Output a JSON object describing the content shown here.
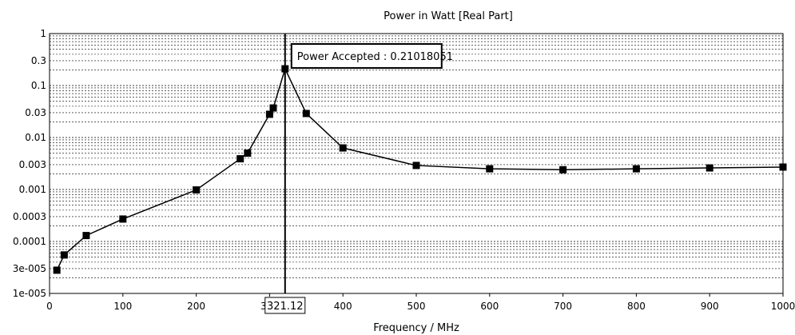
{
  "chart_data": {
    "type": "line",
    "title": "Power in Watt [Real Part]",
    "xlabel": "Frequency / MHz",
    "ylabel": "",
    "xlim": [
      0,
      1000
    ],
    "ylim": [
      1e-05,
      1
    ],
    "yscale": "log",
    "grid": true,
    "x_ticks": [
      0,
      100,
      200,
      300,
      400,
      500,
      600,
      700,
      800,
      900,
      1000
    ],
    "x_tick_labels": [
      "0",
      "100",
      "200",
      "300",
      "400",
      "500",
      "600",
      "700",
      "800",
      "900",
      "1000"
    ],
    "y_ticks": [
      1,
      0.3,
      0.1,
      0.03,
      0.01,
      0.003,
      0.001,
      0.0003,
      0.0001,
      3e-05,
      1e-05
    ],
    "y_tick_labels": [
      "1",
      "0.3",
      "0.1",
      "0.03",
      "0.01",
      "0.003",
      "0.001",
      "0.0003",
      "0.0001",
      "3e-005",
      "1e-005"
    ],
    "series": [
      {
        "color": "#000000",
        "marker": "square",
        "points": [
          [
            10,
            2.8e-05
          ],
          [
            20,
            5.5e-05
          ],
          [
            50,
            0.00013
          ],
          [
            100,
            0.00027
          ],
          [
            200,
            0.00098
          ],
          [
            260,
            0.0039
          ],
          [
            270,
            0.005
          ],
          [
            300,
            0.028
          ],
          [
            305,
            0.037
          ],
          [
            321.12,
            0.21018051
          ],
          [
            350,
            0.029
          ],
          [
            400,
            0.0063
          ],
          [
            500,
            0.0029
          ],
          [
            600,
            0.0025
          ],
          [
            700,
            0.0024
          ],
          [
            800,
            0.0025
          ],
          [
            900,
            0.0026
          ],
          [
            1000,
            0.0027
          ]
        ]
      }
    ],
    "cursor": {
      "x": 321.12,
      "x_label": "321.12",
      "annotation": "Power Accepted : 0.21018051"
    }
  }
}
